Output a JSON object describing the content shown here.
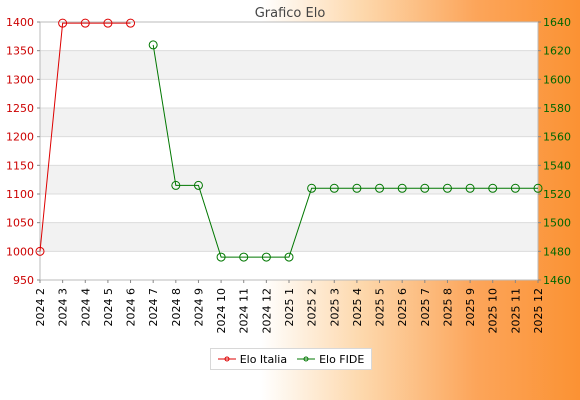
{
  "chart_data": {
    "type": "line",
    "title": "Grafico Elo",
    "categories": [
      "2024 2",
      "2024 3",
      "2024 4",
      "2024 5",
      "2024 6",
      "2024 7",
      "2024 8",
      "2024 9",
      "2024 10",
      "2024 11",
      "2024 12",
      "2025 1",
      "2025 2",
      "2025 3",
      "2025 4",
      "2025 5",
      "2025 6",
      "2025 7",
      "2025 8",
      "2025 9",
      "2025 10",
      "2025 11",
      "2025 12"
    ],
    "y_left": {
      "min": 950,
      "max": 1400,
      "ticks": [
        950,
        1000,
        1050,
        1100,
        1150,
        1200,
        1250,
        1300,
        1350,
        1400
      ],
      "color": "#cc0000"
    },
    "y_right": {
      "min": 1460,
      "max": 1640,
      "ticks": [
        1460,
        1480,
        1500,
        1520,
        1540,
        1560,
        1580,
        1600,
        1620,
        1640
      ],
      "color": "#006600"
    },
    "grid": true,
    "legend_position": "bottom",
    "series": [
      {
        "name": "Elo Italia",
        "axis": "left",
        "color": "#dd0000",
        "values": [
          1000,
          1398,
          1398,
          1398,
          1398,
          null,
          null,
          null,
          null,
          null,
          null,
          null,
          null,
          null,
          null,
          null,
          null,
          null,
          null,
          null,
          null,
          null,
          null
        ]
      },
      {
        "name": "Elo FIDE",
        "axis": "right",
        "color": "#007700",
        "values": [
          null,
          null,
          null,
          null,
          null,
          1624,
          1526,
          1526,
          1476,
          1476,
          1476,
          1476,
          1524,
          1524,
          1524,
          1524,
          1524,
          1524,
          1524,
          1524,
          1524,
          1524,
          1524
        ]
      }
    ]
  }
}
